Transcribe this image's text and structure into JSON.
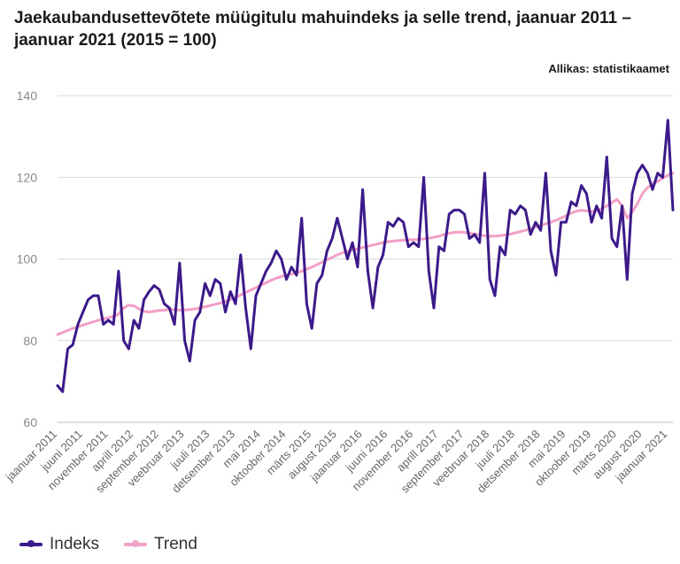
{
  "title": "Jaekaubandusettevõtete müügitulu mahuindeks ja selle trend, jaanuar 2011 – jaanuar 2021 (2015 = 100)",
  "source": "Allikas: statistikaamet",
  "colors": {
    "indeks": "#3d1a8a",
    "trend": "#f2a0c6",
    "grid": "#d9d9d9"
  },
  "chart_data": {
    "type": "line",
    "title": "Jaekaubandusettevõtete müügitulu mahuindeks ja selle trend, jaanuar 2011 – jaanuar 2021 (2015 = 100)",
    "xlabel": "",
    "ylabel": "",
    "ylim": [
      60,
      140
    ],
    "yticks": [
      60,
      80,
      100,
      120,
      140
    ],
    "grid": true,
    "legend_position": "bottom-left",
    "x_tick_labels": [
      "jaanuar 2011",
      "juuni 2011",
      "november 2011",
      "aprill 2012",
      "september 2012",
      "veebruar 2013",
      "juuli 2013",
      "detsember 2013",
      "mai 2014",
      "oktoober 2014",
      "märts 2015",
      "august 2015",
      "jaanuar 2016",
      "juuni 2016",
      "november 2016",
      "aprill 2017",
      "september 2017",
      "veebruar 2018",
      "juuli 2018",
      "detsember 2018",
      "mai 2019",
      "oktoober 2019",
      "märts 2020",
      "august 2020",
      "jaanuar 2021"
    ],
    "x_tick_every": 5,
    "series": [
      {
        "name": "Indeks",
        "values": [
          69,
          67.5,
          78,
          79,
          84,
          87,
          90,
          91,
          91,
          84,
          85,
          84,
          97,
          80,
          78,
          85,
          83,
          90,
          92,
          93.5,
          92.5,
          89,
          88,
          84,
          99,
          80,
          75,
          85,
          87,
          94,
          91,
          95,
          94,
          87,
          92,
          89,
          101,
          88,
          78,
          91,
          94,
          97,
          99,
          102,
          100,
          95,
          98,
          96,
          110,
          89,
          83,
          94,
          96,
          102,
          105,
          110,
          105,
          100,
          104,
          98,
          117,
          97,
          88,
          98,
          101,
          109,
          108,
          110,
          109,
          103,
          104,
          103,
          120,
          97,
          88,
          103,
          102,
          111,
          112,
          112,
          111,
          105,
          106,
          104,
          121,
          95,
          91,
          103,
          101,
          112,
          111,
          113,
          112,
          106,
          109,
          107,
          121,
          102,
          96,
          109,
          109,
          114,
          113,
          118,
          116,
          109,
          113,
          110,
          125,
          105,
          103,
          113,
          95,
          116,
          121,
          123,
          121,
          117,
          121,
          120,
          134,
          112
        ]
      },
      {
        "name": "Trend",
        "values": [
          81.5,
          82,
          82.5,
          83,
          83.4,
          83.8,
          84.2,
          84.6,
          85,
          85.3,
          85.6,
          86,
          86.5,
          88,
          88.7,
          88.5,
          87.8,
          87.2,
          87,
          87.2,
          87.4,
          87.5,
          87.6,
          87.6,
          87.5,
          87.5,
          87.6,
          87.8,
          88,
          88.3,
          88.6,
          88.9,
          89.2,
          89.6,
          90.1,
          90.6,
          91.2,
          91.8,
          92.4,
          93,
          93.6,
          94.2,
          94.8,
          95.3,
          95.7,
          96,
          96.3,
          96.6,
          97,
          97.5,
          98,
          98.6,
          99.2,
          99.8,
          100.4,
          101,
          101.5,
          101.9,
          102.2,
          102.5,
          102.8,
          103.1,
          103.4,
          103.7,
          104,
          104.2,
          104.4,
          104.5,
          104.6,
          104.7,
          104.7,
          104.8,
          104.9,
          105.1,
          105.3,
          105.6,
          106,
          106.3,
          106.5,
          106.6,
          106.5,
          106.3,
          106.1,
          105.9,
          105.7,
          105.6,
          105.6,
          105.7,
          105.9,
          106.1,
          106.4,
          106.7,
          107,
          107.4,
          107.8,
          108.2,
          108.6,
          109,
          109.5,
          110,
          110.6,
          111.2,
          111.7,
          111.9,
          111.8,
          111.6,
          111.8,
          112.3,
          113,
          113.8,
          114.6,
          113,
          110,
          111.5,
          113.5,
          116,
          117.5,
          118.3,
          119,
          119.8,
          120.5,
          121
        ]
      }
    ]
  },
  "legend": {
    "indeks_label": "Indeks",
    "trend_label": "Trend"
  }
}
